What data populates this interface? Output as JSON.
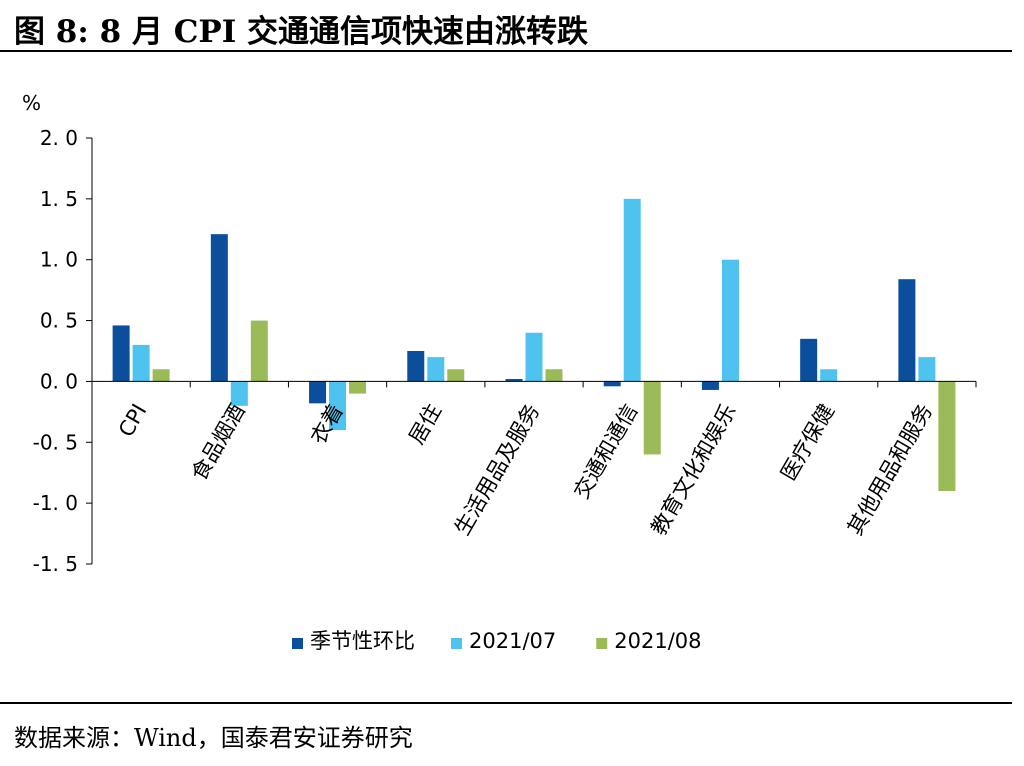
{
  "figure": {
    "title": "图 8:  8 月 CPI 交通通信项快速由涨转跌",
    "source": "数据来源：Wind，国泰君安证券研究"
  },
  "chart_data": {
    "type": "bar",
    "ylabel": "%",
    "xlabel": "",
    "ylim": [
      -1.5,
      2.0
    ],
    "yticks": [
      2.0,
      1.5,
      1.0,
      0.5,
      0.0,
      -0.5,
      -1.0,
      -1.5
    ],
    "ytick_labels": [
      "2. 0",
      "1. 5",
      "1. 0",
      "0. 5",
      "0. 0",
      "-0. 5",
      "-1. 0",
      "-1. 5"
    ],
    "categories": [
      "CPI",
      "食品烟酒",
      "衣着",
      "居住",
      "生活用品及服务",
      "交通和通信",
      "教育文化和娱乐",
      "医疗保健",
      "其他用品和服务"
    ],
    "series": [
      {
        "name": "季节性环比",
        "color": "#0b4f9c",
        "values": [
          0.46,
          1.21,
          -0.18,
          0.25,
          0.02,
          -0.04,
          -0.07,
          0.35,
          0.84
        ]
      },
      {
        "name": "2021/07",
        "color": "#4fc3f0",
        "values": [
          0.3,
          -0.2,
          -0.4,
          0.2,
          0.4,
          1.5,
          1.0,
          0.1,
          0.2
        ]
      },
      {
        "name": "2021/08",
        "color": "#9bbb59",
        "values": [
          0.1,
          0.5,
          -0.1,
          0.1,
          0.1,
          -0.6,
          0.0,
          0.0,
          -0.9
        ]
      }
    ],
    "grid": false,
    "legend_position": "bottom"
  }
}
